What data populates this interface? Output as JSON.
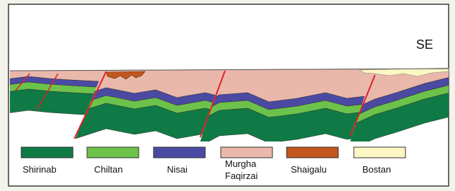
{
  "direction_label": "SE",
  "legend": [
    {
      "lines": [
        "Shirinab"
      ],
      "color": "#0f7a45"
    },
    {
      "lines": [
        "Chiltan"
      ],
      "color": "#6cc24a"
    },
    {
      "lines": [
        "Nisai"
      ],
      "color": "#4b4aa3"
    },
    {
      "lines": [
        "Murgha",
        "Faqirzai"
      ],
      "color": "#e9b8aa"
    },
    {
      "lines": [
        "Shaigalu"
      ],
      "color": "#c2561c"
    },
    {
      "lines": [
        "Bostan"
      ],
      "color": "#fcf5c4"
    }
  ]
}
